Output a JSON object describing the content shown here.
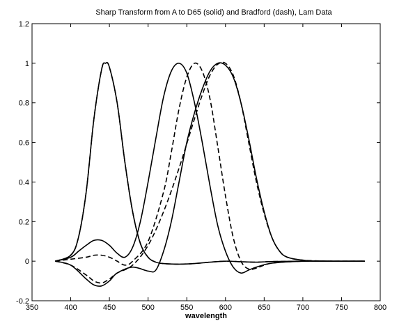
{
  "chart_data": {
    "type": "line",
    "title": "Sharp Transform from A to D65 (solid) and Bradford (dash), Lam Data",
    "xlabel": "wavelength",
    "ylabel": "",
    "xlim": [
      350,
      800
    ],
    "ylim": [
      -0.2,
      1.2
    ],
    "xticks": [
      350,
      400,
      450,
      500,
      550,
      600,
      650,
      700,
      750,
      800
    ],
    "yticks": [
      -0.2,
      0,
      0.2,
      0.4,
      0.6,
      0.8,
      1,
      1.2
    ],
    "xtick_labels": [
      "350",
      "400",
      "450",
      "500",
      "550",
      "600",
      "650",
      "700",
      "750",
      "800"
    ],
    "ytick_labels": [
      "-0.2",
      "0",
      "0.2",
      "0.4",
      "0.6",
      "0.8",
      "1",
      "1.2"
    ],
    "grid": false,
    "line_color": "#000000",
    "series": [
      {
        "style": "solid",
        "x": [
          380,
          400,
          410,
          420,
          430,
          440,
          445,
          450,
          460,
          470,
          480,
          490,
          500,
          510,
          520,
          540,
          560,
          580,
          600,
          620,
          640,
          660,
          700,
          740,
          780
        ],
        "y": [
          0.0,
          0.03,
          0.12,
          0.35,
          0.72,
          0.97,
          1.0,
          0.98,
          0.8,
          0.5,
          0.25,
          0.09,
          0.02,
          -0.005,
          -0.012,
          -0.015,
          -0.012,
          -0.005,
          0.0,
          -0.003,
          -0.005,
          -0.002,
          0.0,
          0.0,
          0.0
        ]
      },
      {
        "style": "solid",
        "x": [
          380,
          400,
          410,
          420,
          430,
          440,
          450,
          460,
          470,
          480,
          490,
          500,
          510,
          520,
          530,
          540,
          550,
          560,
          570,
          580,
          590,
          600,
          610,
          620,
          630,
          640,
          660,
          700,
          740,
          780
        ],
        "y": [
          0.0,
          0.02,
          0.05,
          0.08,
          0.105,
          0.105,
          0.08,
          0.04,
          0.02,
          0.07,
          0.2,
          0.4,
          0.62,
          0.83,
          0.96,
          1.0,
          0.95,
          0.8,
          0.6,
          0.38,
          0.18,
          0.05,
          -0.03,
          -0.06,
          -0.045,
          -0.03,
          -0.01,
          0.0,
          0.0,
          0.0
        ]
      },
      {
        "style": "solid",
        "x": [
          380,
          400,
          420,
          430,
          440,
          450,
          460,
          480,
          500,
          510,
          520,
          530,
          540,
          550,
          560,
          570,
          580,
          590,
          600,
          610,
          620,
          630,
          640,
          650,
          660,
          670,
          680,
          700,
          720,
          740,
          780
        ],
        "y": [
          0.0,
          -0.02,
          -0.09,
          -0.12,
          -0.125,
          -0.1,
          -0.06,
          -0.03,
          -0.05,
          -0.045,
          0.05,
          0.2,
          0.4,
          0.6,
          0.75,
          0.87,
          0.96,
          1.0,
          0.99,
          0.93,
          0.8,
          0.62,
          0.42,
          0.25,
          0.12,
          0.05,
          0.02,
          0.005,
          0.0,
          0.0,
          0.0
        ]
      },
      {
        "style": "dash",
        "x": [
          380,
          400,
          410,
          420,
          430,
          440,
          445,
          450,
          460,
          470,
          480,
          490,
          500,
          510,
          520,
          540,
          560,
          580,
          600,
          620,
          640,
          660,
          700,
          740,
          780
        ],
        "y": [
          0.0,
          0.03,
          0.12,
          0.35,
          0.72,
          0.97,
          1.0,
          0.98,
          0.8,
          0.5,
          0.25,
          0.09,
          0.02,
          -0.005,
          -0.012,
          -0.015,
          -0.012,
          -0.005,
          0.0,
          -0.003,
          -0.005,
          -0.002,
          0.0,
          0.0,
          0.0
        ]
      },
      {
        "style": "dash",
        "x": [
          380,
          400,
          420,
          430,
          440,
          450,
          460,
          470,
          480,
          500,
          520,
          530,
          540,
          550,
          560,
          570,
          580,
          590,
          600,
          610,
          620,
          630,
          640,
          660,
          700,
          740,
          780
        ],
        "y": [
          0.0,
          0.01,
          0.02,
          0.03,
          0.03,
          0.02,
          0.0,
          -0.02,
          0.0,
          0.1,
          0.35,
          0.55,
          0.77,
          0.93,
          1.0,
          0.96,
          0.82,
          0.58,
          0.33,
          0.12,
          0.0,
          -0.04,
          -0.035,
          -0.01,
          0.0,
          0.0,
          0.0
        ]
      },
      {
        "style": "dash",
        "x": [
          380,
          400,
          420,
          430,
          440,
          450,
          460,
          480,
          500,
          520,
          540,
          560,
          570,
          580,
          590,
          600,
          610,
          620,
          630,
          640,
          650,
          660,
          670,
          680,
          700,
          740,
          780
        ],
        "y": [
          0.0,
          -0.02,
          -0.07,
          -0.1,
          -0.11,
          -0.09,
          -0.06,
          -0.02,
          0.08,
          0.25,
          0.47,
          0.72,
          0.84,
          0.94,
          0.995,
          1.0,
          0.94,
          0.8,
          0.6,
          0.4,
          0.24,
          0.12,
          0.05,
          0.02,
          0.005,
          0.0,
          0.0
        ]
      }
    ]
  }
}
